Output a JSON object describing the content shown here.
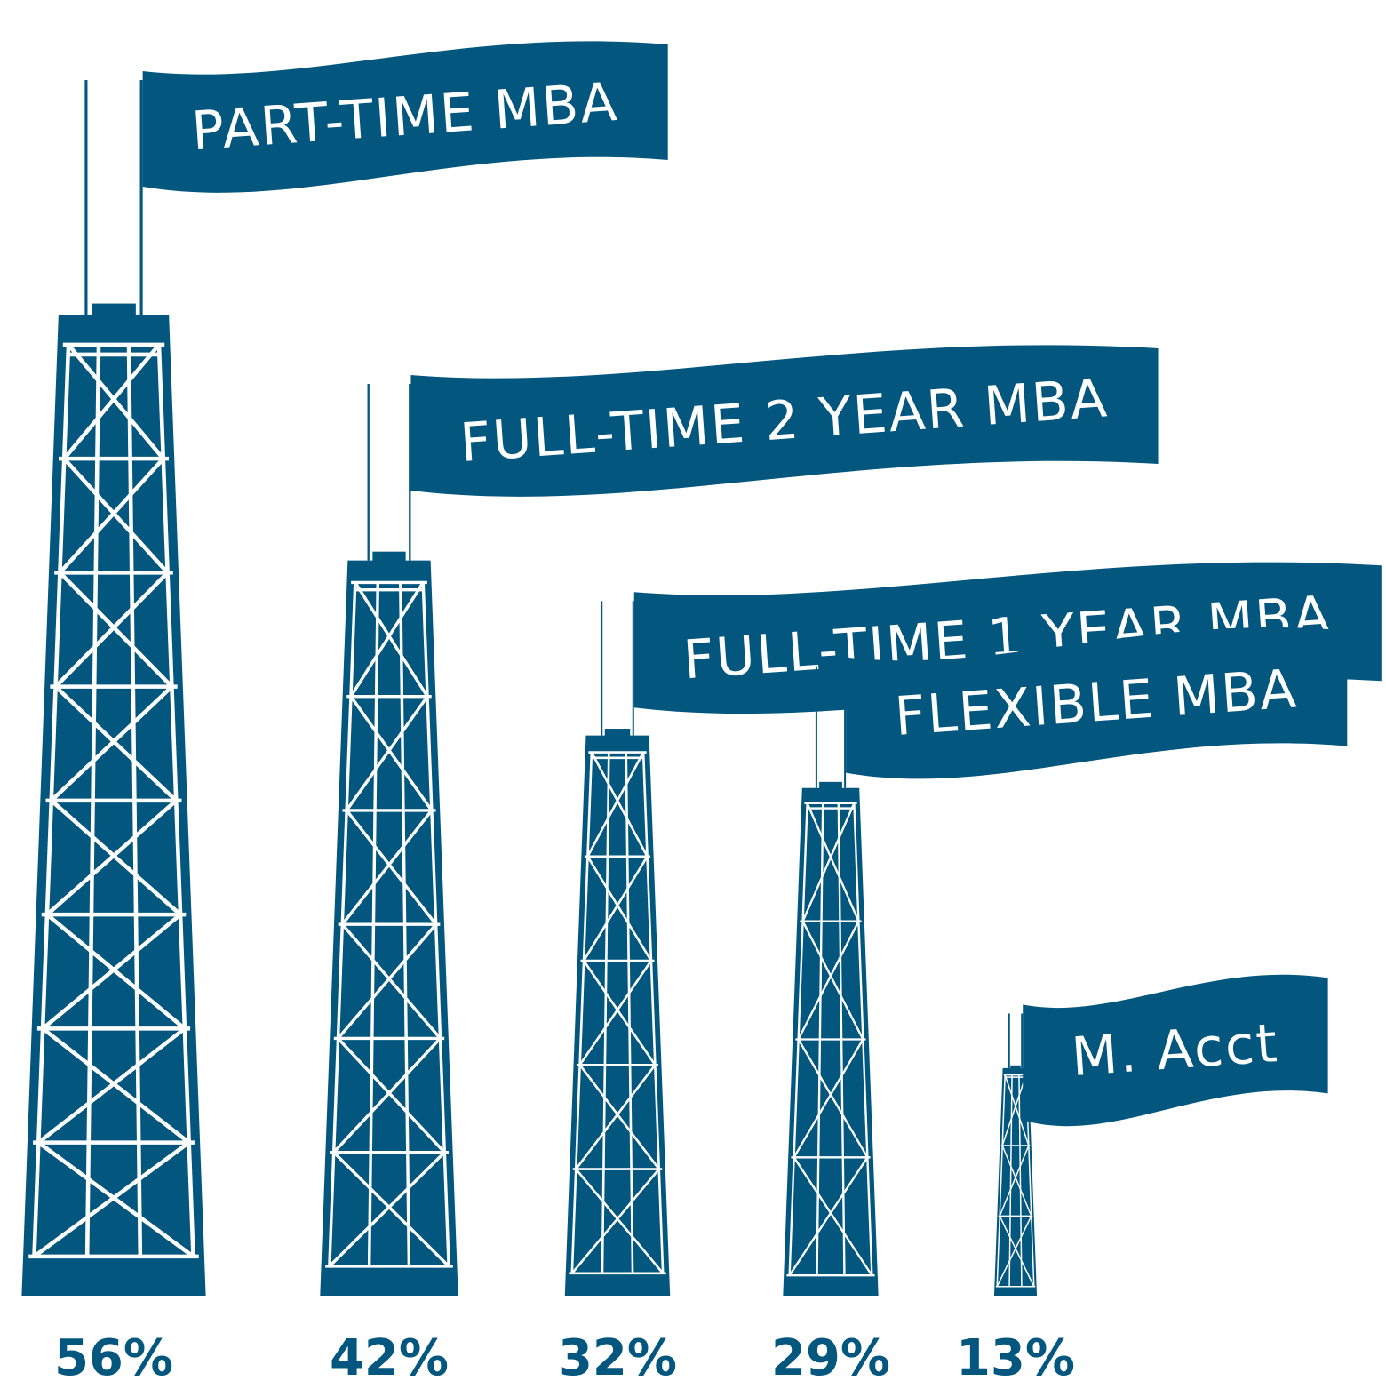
{
  "chart_data": {
    "type": "tower",
    "categories": [
      "PART-TIME MBA",
      "FULL-TIME 2 YEAR MBA",
      "FULL-TIME 1 YEAR MBA",
      "FLEXIBLE MBA",
      "M. Acct"
    ],
    "values": [
      56,
      42,
      32,
      29,
      13
    ],
    "value_labels": [
      "56%",
      "42%",
      "32%",
      "29%",
      "13%"
    ],
    "color": "#03577f"
  }
}
